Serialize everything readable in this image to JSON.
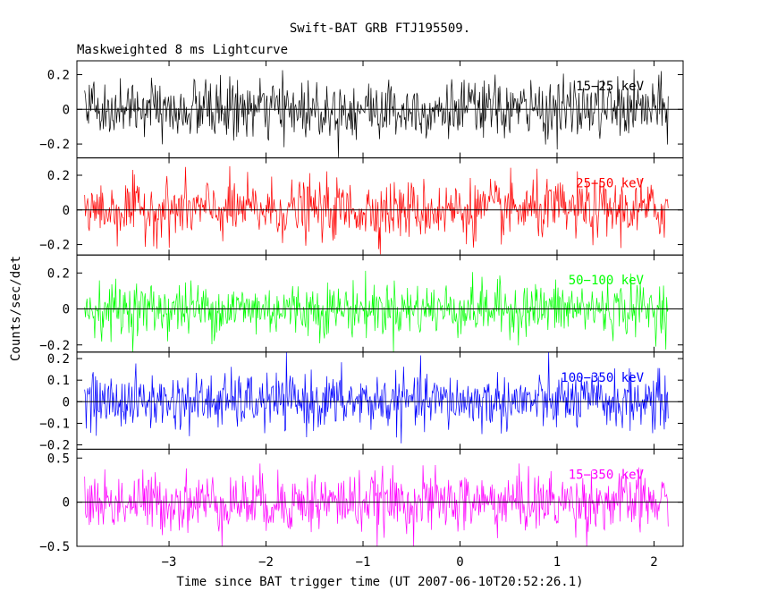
{
  "chart_data": {
    "type": "line",
    "title": "Swift-BAT GRB FTJ195509.",
    "subtitle": "Maskweighted 8 ms Lightcurve",
    "xlabel": "Time since BAT trigger time (UT 2007-06-10T20:52:26.1)",
    "ylabel": "Counts/sec/det",
    "xlim": [
      -3.95,
      2.3
    ],
    "xticks": [
      -3,
      -2,
      -1,
      0,
      1,
      2
    ],
    "xtick_labels": [
      "−3",
      "−2",
      "−1",
      "0",
      "1",
      "2"
    ],
    "x_start": -3.87,
    "x_end": 2.15,
    "bin": 0.008,
    "panels": [
      {
        "name": "15−25 keV",
        "color": "#000000",
        "ylim": [
          -0.28,
          0.28
        ],
        "yticks": [
          -0.2,
          0,
          0.2
        ],
        "ytick_labels": [
          "−0.2",
          "0",
          "0.2"
        ],
        "noise_sigma": 0.085
      },
      {
        "name": "25−50 keV",
        "color": "#ff0000",
        "ylim": [
          -0.26,
          0.3
        ],
        "yticks": [
          -0.2,
          0,
          0.2
        ],
        "ytick_labels": [
          "−0.2",
          "0",
          "0.2"
        ],
        "noise_sigma": 0.085
      },
      {
        "name": "50−100 keV",
        "color": "#00ff00",
        "ylim": [
          -0.24,
          0.3
        ],
        "yticks": [
          -0.2,
          0,
          0.2
        ],
        "ytick_labels": [
          "−0.2",
          "0",
          "0.2"
        ],
        "noise_sigma": 0.075
      },
      {
        "name": "100−350 keV",
        "color": "#0000ff",
        "ylim": [
          -0.22,
          0.23
        ],
        "yticks": [
          -0.2,
          -0.1,
          0,
          0.1,
          0.2
        ],
        "ytick_labels": [
          "−0.2",
          "−0.1",
          "0",
          "0.1",
          "0.2"
        ],
        "noise_sigma": 0.065
      },
      {
        "name": "15−350 keV",
        "color": "#ff00ff",
        "ylim": [
          -0.5,
          0.6
        ],
        "yticks": [
          -0.5,
          0,
          0.5
        ],
        "ytick_labels": [
          "−0.5",
          "0",
          "0.5"
        ],
        "noise_sigma": 0.17
      }
    ]
  }
}
